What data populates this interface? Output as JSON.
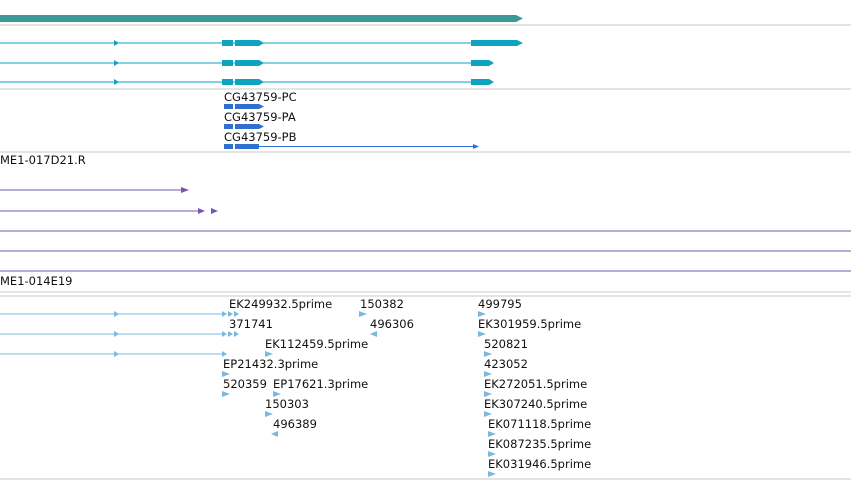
{
  "tracks": {
    "gene_models": {
      "transcripts": [
        "CG43759-PC",
        "CG43759-PA",
        "CG43759-PB"
      ]
    },
    "clone_label_top": "ME1-017D21.R",
    "clone_label_bottom": "ME1-014E19",
    "ests": [
      "EK249932.5prime",
      "150382",
      "499795",
      "371741",
      "496306",
      "EK301959.5prime",
      "EK112459.5prime",
      "520821",
      "EP21432.3prime",
      "423052",
      "520359",
      "EP17621.3prime",
      "EK272051.5prime",
      "150303",
      "EK307240.5prime",
      "496389",
      "EK071118.5prime",
      "EK087235.5prime",
      "EK031946.5prime"
    ]
  },
  "colors": {
    "overview_bar": "#3a9a98",
    "transcript_teal": "#0ea3bf",
    "gene_blue": "#2f6fd0",
    "clone_purple": "#7a56b0",
    "est_lightblue": "#7ab8e0",
    "divider": "#c8c8c8"
  }
}
